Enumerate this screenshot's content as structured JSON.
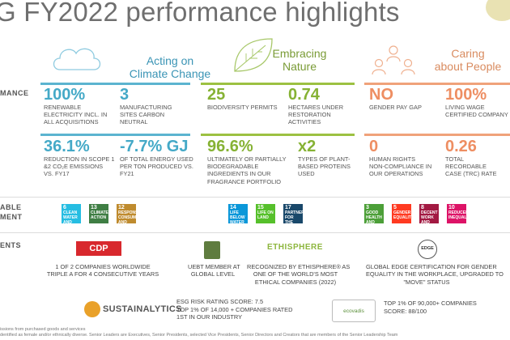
{
  "title": "G FY2022 performance highlights",
  "pillars": [
    {
      "line1": "Acting on",
      "line2": "Climate Change"
    },
    {
      "line1": "Embracing",
      "line2": "Nature"
    },
    {
      "line1": "Caring",
      "line2": "about People"
    }
  ],
  "row_labels": {
    "performance": "MANCE",
    "sdg_line1": "ABLE",
    "sdg_line2": "MENT",
    "recognition": "ENTS"
  },
  "metrics": [
    {
      "value": "100%",
      "d1": "RENEWABLE",
      "d2": "ELECTRICITY INCL. IN",
      "d3": "ALL ACQUISITIONS"
    },
    {
      "value": "3",
      "d1": "MANUFACTURING",
      "d2": "SITES CARBON",
      "d3": "NEUTRAL"
    },
    {
      "value": "25",
      "d1": "BIODIVERSITY PERMITS",
      "d2": "",
      "d3": ""
    },
    {
      "value": "0.74",
      "d1": "HECTARES UNDER",
      "d2": "RESTORATION",
      "d3": "ACTIVITIES"
    },
    {
      "value": "NO",
      "d1": "GENDER PAY GAP",
      "d2": "",
      "d3": ""
    },
    {
      "value": "100%",
      "d1": "LIVING WAGE",
      "d2": "CERTIFIED COMPANY",
      "d3": ""
    },
    {
      "value": "36.1%",
      "d1": "REDUCTION IN SCOPE 1",
      "d2": "&2 CO₂E EMISSIONS",
      "d3": "VS. FY17"
    },
    {
      "value": "-7.7% GJ",
      "d1": "OF TOTAL ENERGY USED",
      "d2": "PER TON PRODUCED VS.",
      "d3": "FY21"
    },
    {
      "value": "96.6%",
      "d1": "ULTIMATELY OR PARTIALLY",
      "d2": "BIODEGRADABLE",
      "d3": "INGREDIENTS IN OUR",
      "d4": "FRAGRANCE PORTFOLIO"
    },
    {
      "value": "x2",
      "d1": "TYPES OF PLANT-",
      "d2": "BASED PROTEINS",
      "d3": "USED"
    },
    {
      "value": "0",
      "d1": "HUMAN RIGHTS",
      "d2": "NON-COMPLIANCE IN",
      "d3": "OUR OPERATIONS"
    },
    {
      "value": "0.26",
      "d1": "TOTAL",
      "d2": "RECORDABLE",
      "d3": "CASE (TRC) RATE"
    }
  ],
  "sdgs": [
    {
      "num": "6",
      "label": "CLEAN WATER AND SANITATION",
      "color": "#26bde2"
    },
    {
      "num": "13",
      "label": "CLIMATE ACTION",
      "color": "#3f7e44"
    },
    {
      "num": "12",
      "label": "RESPONSIBLE CONSUMPTION AND PRODUCTION",
      "color": "#bf8b2e"
    },
    {
      "num": "14",
      "label": "LIFE BELOW WATER",
      "color": "#0a97d9"
    },
    {
      "num": "15",
      "label": "LIFE ON LAND",
      "color": "#56c02b"
    },
    {
      "num": "17",
      "label": "PARTNERSHIPS FOR THE GOALS",
      "color": "#19486a"
    },
    {
      "num": "3",
      "label": "GOOD HEALTH AND WELL-BEING",
      "color": "#4c9f38"
    },
    {
      "num": "5",
      "label": "GENDER EQUALITY",
      "color": "#ff3a21"
    },
    {
      "num": "8",
      "label": "DECENT WORK AND ECONOMIC GROWTH",
      "color": "#a21942"
    },
    {
      "num": "10",
      "label": "REDUCED INEQUALITIES",
      "color": "#dd1367"
    }
  ],
  "recognitions": {
    "cdp": {
      "logo": "CDP",
      "l1": "1 OF 2 COMPANIES WORLDWIDE",
      "l2": "TRIPLE A FOR 4 CONSECUTIVE YEARS"
    },
    "uebt": {
      "l1": "UEBT MEMBER AT",
      "l2": "GLOBAL LEVEL"
    },
    "ethisphere": {
      "logo": "ETHISPHERE",
      "l1": "RECOGNIZED BY ETHISPHERE® AS",
      "l2": "ONE OF THE WORLD'S MOST",
      "l3": "ETHICAL COMPANIES (2022)"
    },
    "edge": {
      "logo": "EDGE",
      "l1": "GLOBAL EDGE CERTIFICATION FOR GENDER",
      "l2": "EQUALITY IN THE WORKPLACE, UPGRADED TO",
      "l3": "\"MOVE\" STATUS"
    },
    "sustainalytics": {
      "logo": "SUSTAINALYTICS",
      "l1": "ESG RISK RATING SCORE: 7.5",
      "l2": "TOP 1% OF 14,000 + COMPANIES RATED",
      "l3": "1ST IN OUR INDUSTRY"
    },
    "ecovadis": {
      "logo": "ecovadis",
      "l1": "TOP 1% OF 90,000+ COMPANIES",
      "l2": "SCORE: 88/100"
    }
  },
  "footnotes": {
    "f1": "issions from purchased goods and services",
    "f2": "dentified as female and/or ethnically diverse. Senior Leaders are Executives, Senior Presidents, selected Vice Presidents, Senior Directors and Creators that are members of the Senior Leadership Team"
  },
  "colors": {
    "blue": "#44a9c7",
    "green": "#86b234",
    "orange": "#ee8e62"
  }
}
